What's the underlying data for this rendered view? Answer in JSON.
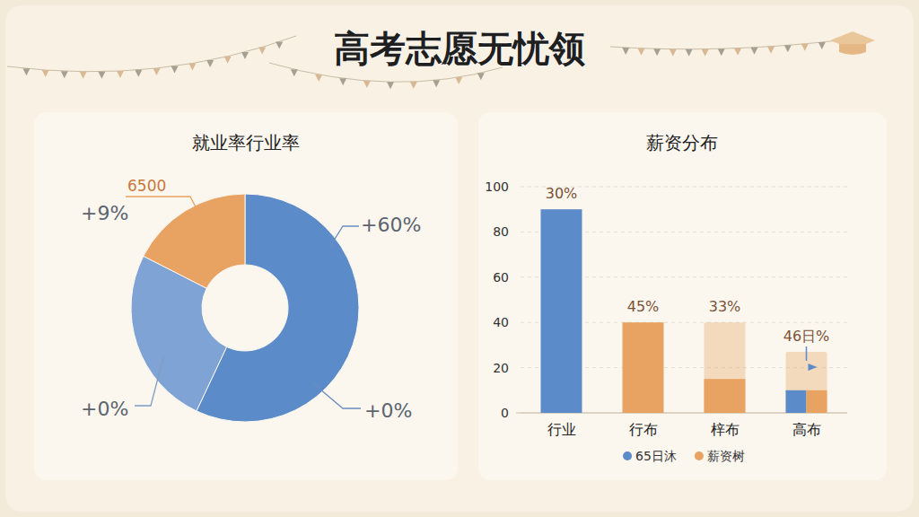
{
  "title": "高考志愿无忧领",
  "chart_data": [
    {
      "type": "donut",
      "title": "就业率行业率",
      "values": [
        57,
        25.5,
        17.5
      ],
      "colors": [
        "#5b8bc9",
        "#80a3d5",
        "#e8a262"
      ],
      "annotations": [
        "6500",
        "+9%",
        "+60%",
        "+0%",
        "+0%"
      ]
    },
    {
      "type": "bar",
      "title": "薪资分布",
      "categories": [
        "行业",
        "行布",
        "梓布",
        "高布"
      ],
      "series": [
        {
          "name": "65日沐",
          "color": "#5b8bc9",
          "values": [
            90,
            null,
            null,
            10
          ]
        },
        {
          "name": "薪资树",
          "color": "#e8a262",
          "values": [
            null,
            40,
            15,
            10
          ],
          "highlight": [
            null,
            null,
            40,
            27
          ]
        }
      ],
      "ylim": [
        0,
        100
      ],
      "yticks": [
        0,
        20,
        40,
        60,
        80,
        100
      ],
      "grid": true,
      "legend": "bottom",
      "annotations": [
        "30%",
        "45%",
        "33%",
        "46日%"
      ]
    }
  ]
}
